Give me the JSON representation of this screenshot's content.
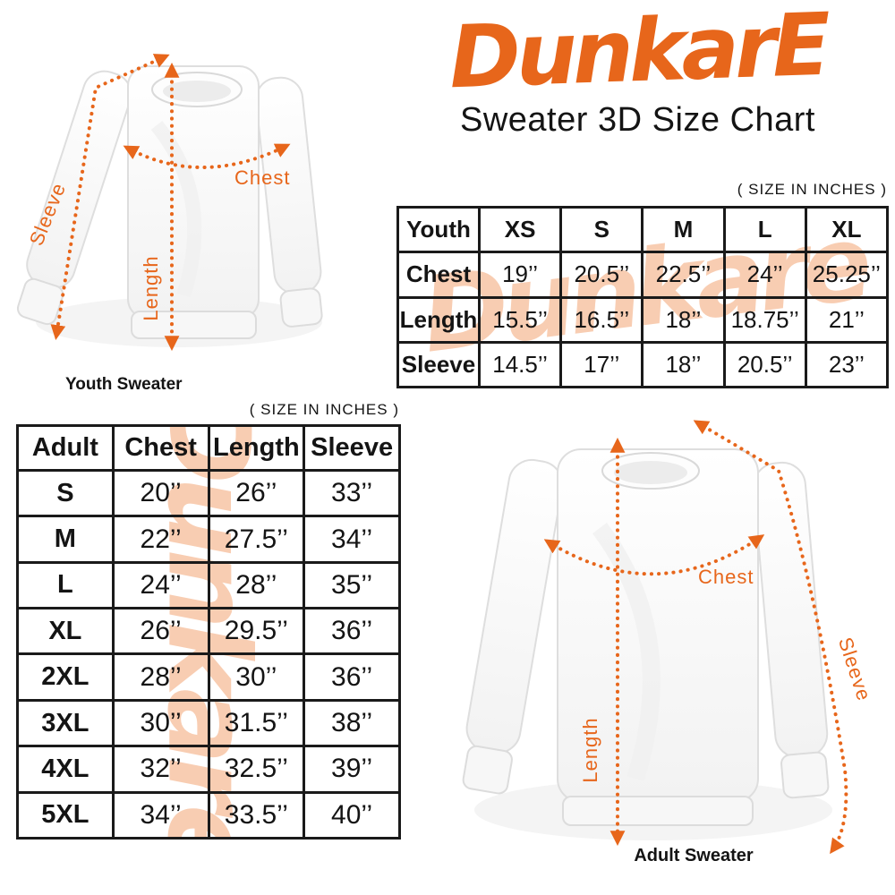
{
  "brand": {
    "logo_text": "DunkarE",
    "title": "Sweater 3D Size Chart"
  },
  "units_note": "( SIZE IN INCHES )",
  "watermark_text": "Dunkare",
  "colors": {
    "accent_orange": "#E7661B",
    "watermark_peach": "#F8CDB2",
    "text_black": "#141414",
    "table_border": "#1A1A1A"
  },
  "youth_figure": {
    "caption": "Youth Sweater",
    "labels": {
      "chest": "Chest",
      "length": "Length",
      "sleeve": "Sleeve"
    }
  },
  "adult_figure": {
    "caption": "Adult Sweater",
    "labels": {
      "chest": "Chest",
      "length": "Length",
      "sleeve": "Sleeve"
    }
  },
  "chart_data": [
    {
      "type": "table",
      "name": "Youth",
      "units": "inches",
      "header": [
        "Youth",
        "XS",
        "S",
        "M",
        "L",
        "XL"
      ],
      "rows": [
        [
          "Chest",
          "19’’",
          "20.5’’",
          "22.5’’",
          "24’’",
          "25.25’’"
        ],
        [
          "Length",
          "15.5’’",
          "16.5’’",
          "18’’",
          "18.75’’",
          "21’’"
        ],
        [
          "Sleeve",
          "14.5’’",
          "17’’",
          "18’’",
          "20.5’’",
          "23’’"
        ]
      ]
    },
    {
      "type": "table",
      "name": "Adult",
      "units": "inches",
      "header": [
        "Adult",
        "Chest",
        "Length",
        "Sleeve"
      ],
      "rows": [
        [
          "S",
          "20’’",
          "26’’",
          "33’’"
        ],
        [
          "M",
          "22’’",
          "27.5’’",
          "34’’"
        ],
        [
          "L",
          "24’’",
          "28’’",
          "35’’"
        ],
        [
          "XL",
          "26’’",
          "29.5’’",
          "36’’"
        ],
        [
          "2XL",
          "28’’",
          "30’’",
          "36’’"
        ],
        [
          "3XL",
          "30’’",
          "31.5’’",
          "38’’"
        ],
        [
          "4XL",
          "32’’",
          "32.5’’",
          "39’’"
        ],
        [
          "5XL",
          "34’’",
          "33.5’’",
          "40’’"
        ]
      ]
    }
  ]
}
